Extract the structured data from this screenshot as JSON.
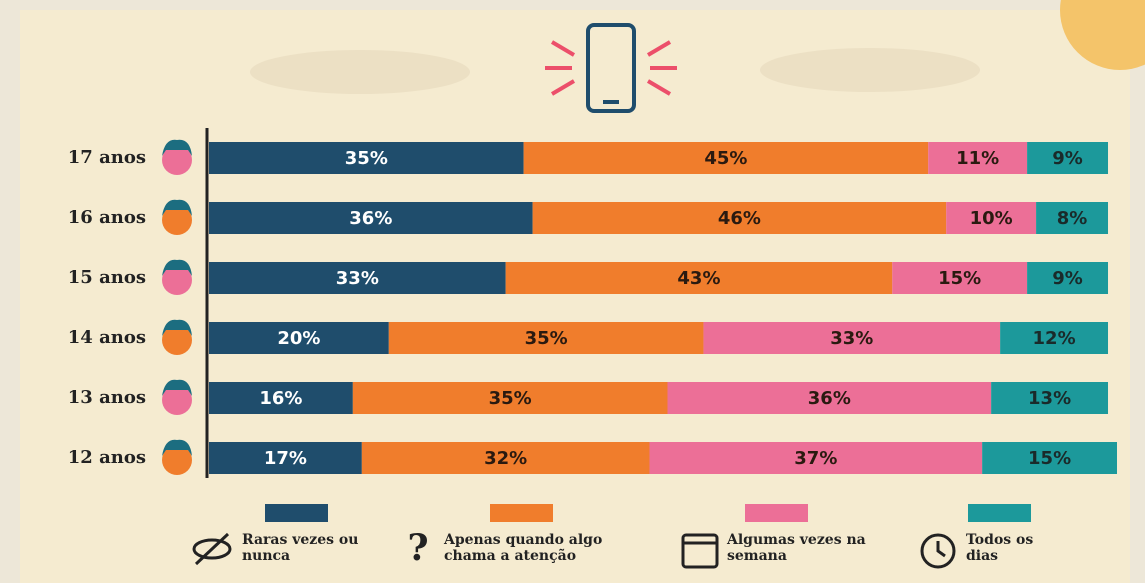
{
  "chart_data": {
    "type": "stacked_barh",
    "categories": [
      "17 anos",
      "16 anos",
      "15 anos",
      "14 anos",
      "13 anos",
      "12 anos"
    ],
    "series": [
      {
        "name": "Raras vezes ou nunca",
        "color": "#1f4d6c",
        "values": [
          35,
          36,
          33,
          20,
          16,
          17
        ],
        "value_labels": [
          "35%",
          "36%",
          "33%",
          "20%",
          "16%",
          "17%"
        ]
      },
      {
        "name": "Apenas quando algo chama a atenção",
        "color": "#f07d2c",
        "values": [
          45,
          46,
          43,
          35,
          35,
          32
        ],
        "value_labels": [
          "45%",
          "46%",
          "43%",
          "35%",
          "35%",
          "32%"
        ]
      },
      {
        "name": "Algumas vezes na semana",
        "color": "#ec6f97",
        "values": [
          11,
          10,
          15,
          33,
          36,
          37
        ],
        "value_labels": [
          "11%",
          "10%",
          "15%",
          "33%",
          "36%",
          "37%"
        ]
      },
      {
        "name": "Todos os dias",
        "color": "#1c999b",
        "values": [
          9,
          8,
          9,
          12,
          13,
          15
        ],
        "value_labels": [
          "9%",
          "8%",
          "9%",
          "12%",
          "13%",
          "15%"
        ]
      }
    ]
  }
}
